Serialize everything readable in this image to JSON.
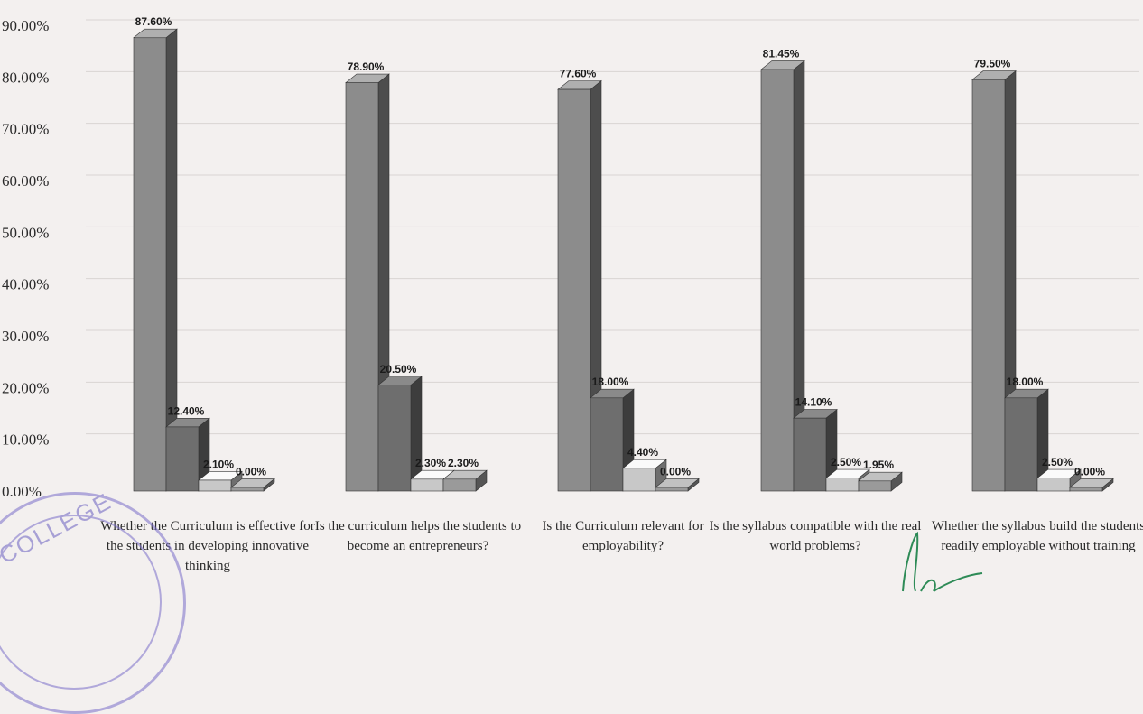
{
  "chart_data": {
    "type": "bar",
    "title": "",
    "xlabel": "",
    "ylabel": "",
    "ylim": [
      0,
      90
    ],
    "y_ticks": [
      "0.00%",
      "10.00%",
      "20.00%",
      "30.00%",
      "40.00%",
      "50.00%",
      "60.00%",
      "70.00%",
      "80.00%",
      "90.00%"
    ],
    "grid": true,
    "bar_style": "3d",
    "categories": [
      "Whether the Curriculum is effective for the students in developing innovative thinking",
      "Is the curriculum helps the students to become an entrepreneurs?",
      "Is the Curriculum relevant for employability?",
      "Is the syllabus compatible with the real world problems?",
      "Whether the syllabus build the students readily employable without training"
    ],
    "series": [
      {
        "values": [
          87.6,
          78.9,
          77.6,
          81.45,
          79.5
        ],
        "labels": [
          "87.60%",
          "78.90%",
          "77.60%",
          "81.45%",
          "79.50%"
        ],
        "color": "#8c8c8c"
      },
      {
        "values": [
          12.4,
          20.5,
          18.0,
          14.1,
          18.0
        ],
        "labels": [
          "12.40%",
          "20.50%",
          "18.00%",
          "14.10%",
          "18.00%"
        ],
        "color": "#6e6e6e"
      },
      {
        "values": [
          2.1,
          2.3,
          4.4,
          2.5,
          2.5
        ],
        "labels": [
          "2.10%",
          "2.30%",
          "4.40%",
          "2.50%",
          "2.50%"
        ],
        "color": "#c8c8c8"
      },
      {
        "values": [
          0.0,
          2.3,
          0.0,
          1.95,
          0.0
        ],
        "labels": [
          "0.00%",
          "2.30%",
          "0.00%",
          "1.95%",
          "0.00%"
        ],
        "color": "#9a9a9a"
      }
    ]
  },
  "stamp": {
    "text": "COLLEGE"
  },
  "colors": {
    "background": "#f3f0ef",
    "grid": "#d9d4d3",
    "stamp": "#7b6fc9",
    "signature": "#2e8b57"
  }
}
